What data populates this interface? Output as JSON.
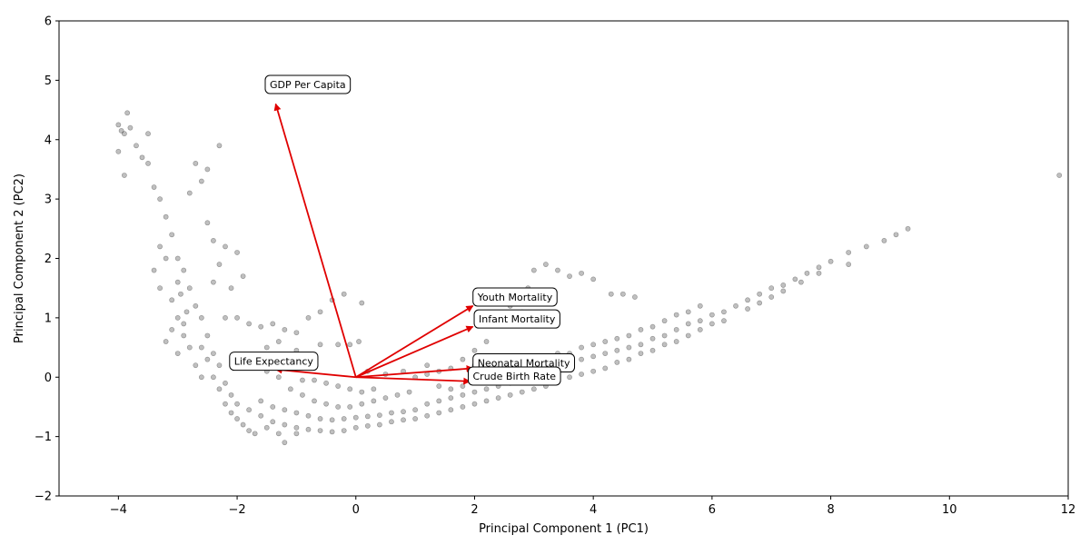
{
  "chart_data": {
    "type": "scatter",
    "title": "",
    "xlabel": "Principal Component 1 (PC1)",
    "ylabel": "Principal Component 2 (PC2)",
    "xlim": [
      -5,
      12
    ],
    "ylim": [
      -2,
      6
    ],
    "xticks": [
      -4,
      -2,
      0,
      2,
      4,
      6,
      8,
      10,
      12
    ],
    "yticks": [
      -2,
      -1,
      0,
      1,
      2,
      3,
      4,
      5,
      6
    ],
    "grid": false,
    "point_color": "#000000",
    "point_opacity": 0.25,
    "arrow_color": "#e00000",
    "points_description": "Dense boomerang-shaped cloud of several thousand observations: a steep upper-left arm from about (-4, 4.3) down to a trough near (-1, -0.8), and a long right arm rising from the trough to about (9.3, 2.5); one outlier near (11.9, 3.4).",
    "points": [
      [
        -4.0,
        4.25
      ],
      [
        -3.95,
        4.15
      ],
      [
        -3.9,
        4.1
      ],
      [
        -3.85,
        4.45
      ],
      [
        -3.8,
        4.2
      ],
      [
        -4.0,
        3.8
      ],
      [
        -3.9,
        3.4
      ],
      [
        -3.7,
        3.9
      ],
      [
        -3.6,
        3.7
      ],
      [
        -3.5,
        4.1
      ],
      [
        -3.5,
        3.6
      ],
      [
        -3.4,
        3.2
      ],
      [
        -3.3,
        3.0
      ],
      [
        -3.2,
        2.7
      ],
      [
        -3.1,
        2.4
      ],
      [
        -3.0,
        2.0
      ],
      [
        -2.9,
        1.8
      ],
      [
        -2.8,
        1.5
      ],
      [
        -2.7,
        1.2
      ],
      [
        -2.6,
        1.0
      ],
      [
        -2.5,
        0.7
      ],
      [
        -2.4,
        0.4
      ],
      [
        -2.3,
        0.2
      ],
      [
        -2.2,
        -0.1
      ],
      [
        -2.1,
        -0.3
      ],
      [
        -2.0,
        -0.45
      ],
      [
        -1.8,
        -0.55
      ],
      [
        -1.6,
        -0.65
      ],
      [
        -1.4,
        -0.75
      ],
      [
        -1.2,
        -0.8
      ],
      [
        -1.0,
        -0.85
      ],
      [
        -0.8,
        -0.88
      ],
      [
        -0.6,
        -0.9
      ],
      [
        -0.4,
        -0.92
      ],
      [
        -0.2,
        -0.9
      ],
      [
        -2.7,
        3.6
      ],
      [
        -2.6,
        3.3
      ],
      [
        -2.8,
        3.1
      ],
      [
        -2.5,
        2.6
      ],
      [
        -2.4,
        2.3
      ],
      [
        -2.3,
        3.9
      ],
      [
        -2.5,
        3.5
      ],
      [
        -2.2,
        2.2
      ],
      [
        -2.0,
        2.1
      ],
      [
        -1.9,
        1.7
      ],
      [
        -2.1,
        1.5
      ],
      [
        -2.4,
        1.6
      ],
      [
        -2.3,
        1.9
      ],
      [
        -2.2,
        1.0
      ],
      [
        -2.0,
        1.0
      ],
      [
        -1.8,
        0.9
      ],
      [
        -1.6,
        0.85
      ],
      [
        -1.4,
        0.9
      ],
      [
        -1.2,
        0.8
      ],
      [
        -1.0,
        0.75
      ],
      [
        -0.8,
        1.0
      ],
      [
        -0.6,
        1.1
      ],
      [
        -0.4,
        1.3
      ],
      [
        -0.2,
        1.4
      ],
      [
        0.1,
        1.25
      ],
      [
        -3.3,
        2.2
      ],
      [
        -3.2,
        2.0
      ],
      [
        -3.0,
        1.6
      ],
      [
        -3.1,
        1.3
      ],
      [
        -3.0,
        1.0
      ],
      [
        -2.9,
        0.7
      ],
      [
        -2.8,
        0.5
      ],
      [
        -2.7,
        0.2
      ],
      [
        -2.6,
        0.0
      ],
      [
        -3.2,
        0.6
      ],
      [
        -3.1,
        0.8
      ],
      [
        -3.3,
        1.5
      ],
      [
        -3.4,
        1.8
      ],
      [
        -3.0,
        0.4
      ],
      [
        -2.9,
        0.9
      ],
      [
        -2.85,
        1.1
      ],
      [
        -2.95,
        1.4
      ],
      [
        -2.6,
        0.5
      ],
      [
        -2.5,
        0.3
      ],
      [
        -2.4,
        0.0
      ],
      [
        -2.3,
        -0.2
      ],
      [
        -2.2,
        -0.45
      ],
      [
        -2.1,
        -0.6
      ],
      [
        -2.0,
        -0.7
      ],
      [
        -1.9,
        -0.8
      ],
      [
        -1.8,
        -0.9
      ],
      [
        -1.7,
        -0.95
      ],
      [
        -1.5,
        -0.85
      ],
      [
        -1.3,
        -0.95
      ],
      [
        -1.2,
        -1.1
      ],
      [
        -1.0,
        -0.95
      ],
      [
        -1.7,
        0.3
      ],
      [
        -1.5,
        0.1
      ],
      [
        -1.3,
        0.0
      ],
      [
        -1.1,
        -0.2
      ],
      [
        -0.9,
        -0.3
      ],
      [
        -0.7,
        -0.4
      ],
      [
        -0.5,
        -0.45
      ],
      [
        -0.3,
        -0.5
      ],
      [
        -0.1,
        -0.5
      ],
      [
        0.1,
        -0.45
      ],
      [
        0.3,
        -0.4
      ],
      [
        0.5,
        -0.35
      ],
      [
        0.7,
        -0.3
      ],
      [
        0.9,
        -0.25
      ],
      [
        -1.6,
        -0.4
      ],
      [
        -1.4,
        -0.5
      ],
      [
        -1.2,
        -0.55
      ],
      [
        -1.0,
        -0.6
      ],
      [
        -0.8,
        -0.65
      ],
      [
        -0.6,
        -0.7
      ],
      [
        -0.4,
        -0.72
      ],
      [
        -0.2,
        -0.7
      ],
      [
        0.0,
        -0.68
      ],
      [
        0.2,
        -0.66
      ],
      [
        0.4,
        -0.64
      ],
      [
        0.6,
        -0.6
      ],
      [
        0.8,
        -0.58
      ],
      [
        1.0,
        -0.55
      ],
      [
        0.0,
        -0.85
      ],
      [
        0.2,
        -0.82
      ],
      [
        0.4,
        -0.8
      ],
      [
        0.6,
        -0.75
      ],
      [
        0.8,
        -0.72
      ],
      [
        1.0,
        -0.7
      ],
      [
        1.2,
        -0.65
      ],
      [
        1.4,
        -0.6
      ],
      [
        1.6,
        -0.55
      ],
      [
        1.8,
        -0.5
      ],
      [
        1.2,
        -0.45
      ],
      [
        1.4,
        -0.4
      ],
      [
        1.6,
        -0.35
      ],
      [
        1.8,
        -0.3
      ],
      [
        2.0,
        -0.25
      ],
      [
        2.2,
        -0.2
      ],
      [
        2.4,
        -0.15
      ],
      [
        2.6,
        -0.1
      ],
      [
        2.8,
        -0.05
      ],
      [
        3.0,
        0.0
      ],
      [
        3.2,
        0.05
      ],
      [
        2.0,
        -0.45
      ],
      [
        2.2,
        -0.4
      ],
      [
        2.4,
        -0.35
      ],
      [
        2.6,
        -0.3
      ],
      [
        2.8,
        -0.25
      ],
      [
        3.0,
        -0.2
      ],
      [
        3.2,
        -0.15
      ],
      [
        1.0,
        0.0
      ],
      [
        1.2,
        0.05
      ],
      [
        1.4,
        0.1
      ],
      [
        1.6,
        0.15
      ],
      [
        1.8,
        0.3
      ],
      [
        2.0,
        0.45
      ],
      [
        2.2,
        0.6
      ],
      [
        2.0,
        0.2
      ],
      [
        2.2,
        0.25
      ],
      [
        2.4,
        0.3
      ],
      [
        2.6,
        0.35
      ],
      [
        3.4,
        0.4
      ],
      [
        3.6,
        0.2
      ],
      [
        3.8,
        0.3
      ],
      [
        4.0,
        0.35
      ],
      [
        4.2,
        0.4
      ],
      [
        4.4,
        0.45
      ],
      [
        4.6,
        0.5
      ],
      [
        4.8,
        0.55
      ],
      [
        5.0,
        0.65
      ],
      [
        5.2,
        0.7
      ],
      [
        5.4,
        0.8
      ],
      [
        5.6,
        0.9
      ],
      [
        5.8,
        0.95
      ],
      [
        6.0,
        1.05
      ],
      [
        6.2,
        1.1
      ],
      [
        6.4,
        1.2
      ],
      [
        6.6,
        1.3
      ],
      [
        6.8,
        1.4
      ],
      [
        7.0,
        1.5
      ],
      [
        7.2,
        1.55
      ],
      [
        7.4,
        1.65
      ],
      [
        7.6,
        1.75
      ],
      [
        7.8,
        1.85
      ],
      [
        8.0,
        1.95
      ],
      [
        3.6,
        0.0
      ],
      [
        3.8,
        0.05
      ],
      [
        4.0,
        0.1
      ],
      [
        4.2,
        0.15
      ],
      [
        4.4,
        0.25
      ],
      [
        4.6,
        0.3
      ],
      [
        4.8,
        0.4
      ],
      [
        5.0,
        0.45
      ],
      [
        5.2,
        0.55
      ],
      [
        5.4,
        0.6
      ],
      [
        5.6,
        0.7
      ],
      [
        5.8,
        0.8
      ],
      [
        6.0,
        0.9
      ],
      [
        6.2,
        0.95
      ],
      [
        3.4,
        0.1
      ],
      [
        3.6,
        0.4
      ],
      [
        3.8,
        0.5
      ],
      [
        4.0,
        0.55
      ],
      [
        4.2,
        0.6
      ],
      [
        4.4,
        0.65
      ],
      [
        4.6,
        0.7
      ],
      [
        4.8,
        0.8
      ],
      [
        5.0,
        0.85
      ],
      [
        5.2,
        0.95
      ],
      [
        5.4,
        1.05
      ],
      [
        5.6,
        1.1
      ],
      [
        5.8,
        1.2
      ],
      [
        6.6,
        1.15
      ],
      [
        6.8,
        1.25
      ],
      [
        7.0,
        1.35
      ],
      [
        7.2,
        1.45
      ],
      [
        7.5,
        1.6
      ],
      [
        7.8,
        1.75
      ],
      [
        8.3,
        1.9
      ],
      [
        8.3,
        2.1
      ],
      [
        8.6,
        2.2
      ],
      [
        8.9,
        2.3
      ],
      [
        9.1,
        2.4
      ],
      [
        9.3,
        2.5
      ],
      [
        11.85,
        3.4
      ],
      [
        3.2,
        1.9
      ],
      [
        3.4,
        1.8
      ],
      [
        3.6,
        1.7
      ],
      [
        3.8,
        1.75
      ],
      [
        4.0,
        1.65
      ],
      [
        4.3,
        1.4
      ],
      [
        4.5,
        1.4
      ],
      [
        4.7,
        1.35
      ],
      [
        2.9,
        1.5
      ],
      [
        3.0,
        1.8
      ],
      [
        2.6,
        1.2
      ],
      [
        2.8,
        1.1
      ],
      [
        1.2,
        0.2
      ],
      [
        0.8,
        0.1
      ],
      [
        0.5,
        0.05
      ],
      [
        0.2,
        0.1
      ],
      [
        -0.3,
        0.55
      ],
      [
        -0.1,
        0.55
      ],
      [
        0.05,
        0.6
      ],
      [
        -0.6,
        0.55
      ],
      [
        -1.0,
        0.45
      ],
      [
        -1.3,
        0.6
      ],
      [
        -1.5,
        0.5
      ],
      [
        -0.5,
        -0.1
      ],
      [
        -0.7,
        -0.05
      ],
      [
        -0.9,
        -0.05
      ],
      [
        -0.3,
        -0.15
      ],
      [
        -0.1,
        -0.2
      ],
      [
        0.1,
        -0.25
      ],
      [
        0.3,
        -0.2
      ],
      [
        1.4,
        -0.15
      ],
      [
        1.6,
        -0.2
      ],
      [
        1.8,
        -0.15
      ],
      [
        2.4,
        -0.05
      ],
      [
        2.6,
        0.0
      ],
      [
        2.8,
        0.1
      ],
      [
        3.0,
        0.15
      ]
    ],
    "loadings": [
      {
        "label": "GDP Per Capita",
        "x": -1.35,
        "y": 4.6,
        "label_x": -1.45,
        "label_y": 4.93
      },
      {
        "label": "Youth Mortality",
        "x": 1.97,
        "y": 1.2,
        "label_x": 2.05,
        "label_y": 1.35
      },
      {
        "label": "Infant Mortality",
        "x": 1.97,
        "y": 0.85,
        "label_x": 2.07,
        "label_y": 0.98
      },
      {
        "label": "Life Expectancy",
        "x": -1.35,
        "y": 0.13,
        "label_x": -2.05,
        "label_y": 0.27
      },
      {
        "label": "Neonatal Mortality",
        "x": 1.97,
        "y": 0.15,
        "label_x": 2.05,
        "label_y": 0.24
      },
      {
        "label": "Crude Birth Rate",
        "x": 1.92,
        "y": -0.07,
        "label_x": 1.97,
        "label_y": 0.02
      }
    ]
  }
}
